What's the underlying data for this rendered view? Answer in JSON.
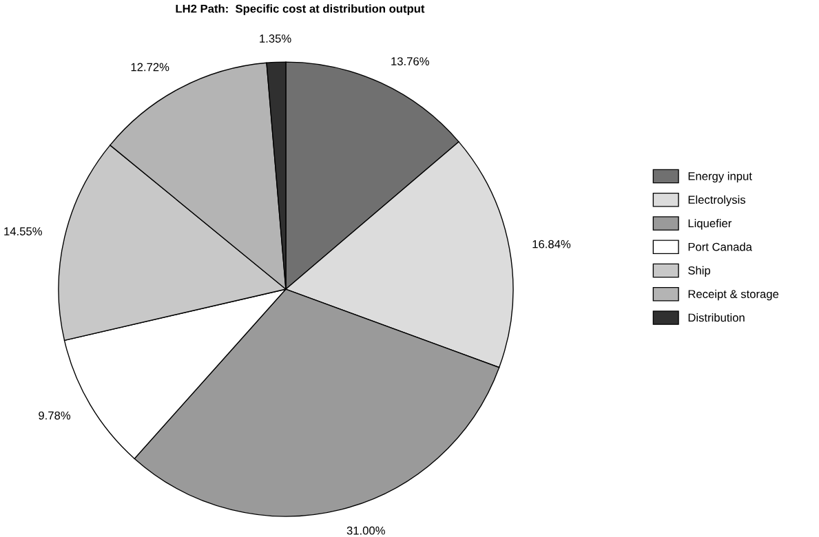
{
  "chart_data": {
    "type": "pie",
    "title": "LH2 Path:  Specific cost at distribution output",
    "categories": [
      "Energy input",
      "Electrolysis",
      "Liquefier",
      "Port Canada",
      "Ship",
      "Receipt & storage",
      "Distribution"
    ],
    "values": [
      13.76,
      16.84,
      31.0,
      9.78,
      14.55,
      12.72,
      1.35
    ],
    "value_labels": [
      "13.76%",
      "16.84%",
      "31.00%",
      "9.78%",
      "14.55%",
      "12.72%",
      "1.35%"
    ],
    "colors": [
      "#707070",
      "#dcdcdc",
      "#9a9a9a",
      "#ffffff",
      "#c8c8c8",
      "#b4b4b4",
      "#303030"
    ],
    "legend": "right"
  }
}
